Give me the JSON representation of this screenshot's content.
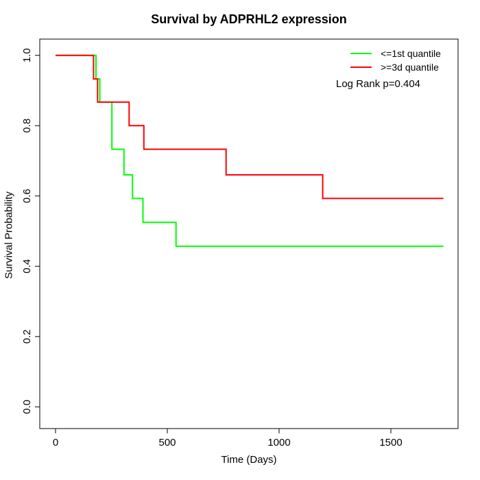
{
  "title": "Survival by ADPRHL2 expression",
  "x_axis": {
    "label": "Time (Days)",
    "tick_labels": [
      "0",
      "500",
      "1000",
      "1500"
    ]
  },
  "y_axis": {
    "label": "Survival Probability",
    "tick_labels": [
      "0.0",
      "0.2",
      "0.4",
      "0.6",
      "0.8",
      "1.0"
    ]
  },
  "legend": {
    "items": [
      {
        "label": "<=1st quantile",
        "color": "#00ff00"
      },
      {
        "label": ">=3d quantile",
        "color": "#ff0000"
      }
    ]
  },
  "annotation": "Log Rank p=0.404",
  "chart_data": {
    "type": "line",
    "variant": "kaplan-meier-step",
    "title": "Survival by ADPRHL2 expression",
    "xlabel": "Time (Days)",
    "ylabel": "Survival Probability",
    "x_ticks": [
      0,
      500,
      1000,
      1500
    ],
    "y_ticks": [
      0.0,
      0.2,
      0.4,
      0.6,
      0.8,
      1.0
    ],
    "xlim": [
      -70.6,
      1800.6
    ],
    "ylim": [
      -0.0618,
      1.0463
    ],
    "grid": false,
    "legend_position": "top-right",
    "annotations": [
      "Log Rank p=0.404"
    ],
    "series": [
      {
        "name": "<=1st quantile",
        "color": "#00ff00",
        "points": [
          [
            0,
            1.0
          ],
          [
            181,
            1.0
          ],
          [
            181,
            0.933
          ],
          [
            198,
            0.933
          ],
          [
            198,
            0.867
          ],
          [
            252,
            0.867
          ],
          [
            252,
            0.733
          ],
          [
            306,
            0.733
          ],
          [
            306,
            0.66
          ],
          [
            344,
            0.66
          ],
          [
            344,
            0.593
          ],
          [
            391,
            0.593
          ],
          [
            391,
            0.525
          ],
          [
            539,
            0.525
          ],
          [
            539,
            0.457
          ],
          [
            1735,
            0.457
          ]
        ]
      },
      {
        "name": ">=3d quantile",
        "color": "#ff0000",
        "points": [
          [
            0,
            1.0
          ],
          [
            170,
            1.0
          ],
          [
            170,
            0.933
          ],
          [
            188,
            0.933
          ],
          [
            188,
            0.867
          ],
          [
            329,
            0.867
          ],
          [
            329,
            0.8
          ],
          [
            395,
            0.8
          ],
          [
            395,
            0.733
          ],
          [
            763,
            0.733
          ],
          [
            763,
            0.66
          ],
          [
            1195,
            0.66
          ],
          [
            1195,
            0.593
          ],
          [
            1735,
            0.593
          ]
        ]
      }
    ]
  }
}
